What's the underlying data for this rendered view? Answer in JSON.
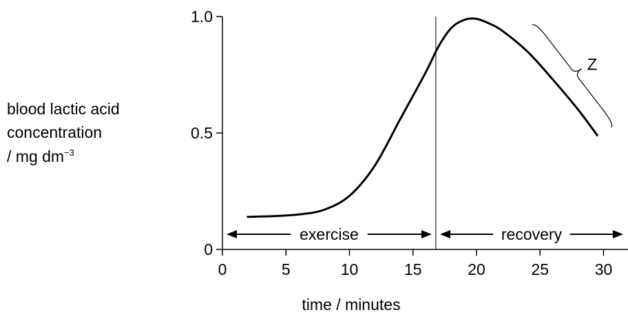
{
  "chart_data": {
    "type": "line",
    "title": "",
    "ylabel_lines": [
      "blood lactic acid",
      "concentration",
      "/ mg dm"
    ],
    "ylabel_superscript": "−3",
    "xlabel": "time / minutes",
    "xlim": [
      0,
      32
    ],
    "ylim": [
      0,
      1.0
    ],
    "x_ticks": [
      "0",
      "5",
      "10",
      "15",
      "20",
      "25",
      "30"
    ],
    "y_ticks": [
      "0",
      "0.5",
      "1.0"
    ],
    "grid": false,
    "series": [
      {
        "x": [
          2,
          4,
          6,
          8,
          10,
          12,
          14,
          16,
          17,
          18,
          19,
          20,
          21,
          22,
          24,
          26,
          28,
          29.5
        ],
        "y": [
          0.14,
          0.143,
          0.15,
          0.17,
          0.23,
          0.36,
          0.56,
          0.76,
          0.87,
          0.95,
          0.985,
          0.99,
          0.97,
          0.94,
          0.85,
          0.73,
          0.6,
          0.49
        ]
      }
    ],
    "divider_x": 16.8,
    "phases": [
      {
        "label": "exercise",
        "x_start": 0,
        "x_end": 16.8
      },
      {
        "label": "recovery",
        "x_start": 16.8,
        "x_end": 32
      }
    ],
    "annotation": {
      "label": "Z",
      "x_start": 24.5,
      "x_end": 30.5
    }
  }
}
